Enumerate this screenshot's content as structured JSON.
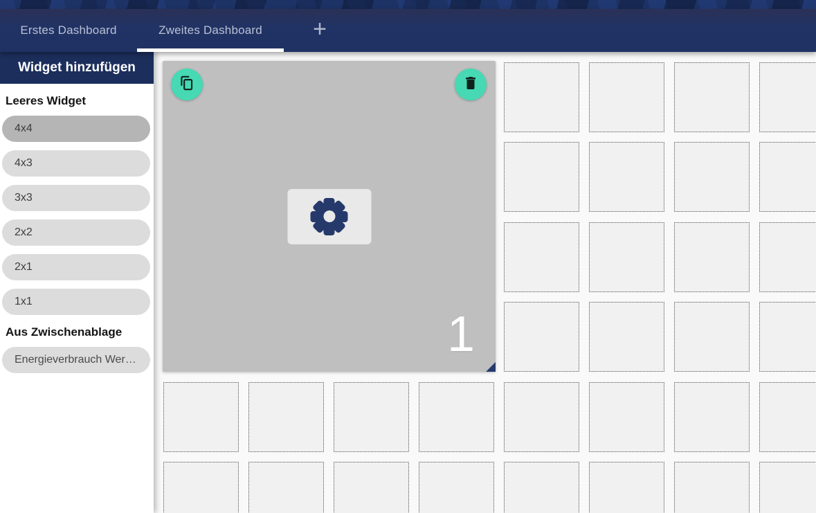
{
  "tab_bar": {
    "tabs": [
      {
        "label": "Erstes Dashboard",
        "active": false
      },
      {
        "label": "Zweites Dashboard",
        "active": true
      }
    ],
    "add_button": "+"
  },
  "sidebar": {
    "header": "Widget hinzufügen",
    "empty_widget_section": {
      "title": "Leeres Widget",
      "sizes": [
        "4x4",
        "4x3",
        "3x3",
        "2x2",
        "2x1",
        "1x1"
      ],
      "selected_size": "4x4"
    },
    "clipboard_section": {
      "title": "Aus Zwischenablage",
      "items": [
        "Energieverbrauch Wer…"
      ]
    }
  },
  "canvas": {
    "grid": {
      "columns": 8,
      "rows": 6
    },
    "widget": {
      "number": "1"
    }
  },
  "icons": {
    "copy": "copy-icon",
    "delete": "trash-icon",
    "settings": "gear-icon",
    "add": "plus-icon",
    "resize": "resize-corner"
  },
  "colors": {
    "accent_teal": "#46d9b4",
    "navy_header": "#1c2e5c",
    "tab_bar_navy": "#1f3263",
    "banner_navy": "#1d3366",
    "widget_gray": "#bfbfbf",
    "pill_gray": "#dcdcdc",
    "pill_selected_gray": "#b5b5b5",
    "gear_navy": "#26396b",
    "active_tab_underline": "#ffffff"
  }
}
